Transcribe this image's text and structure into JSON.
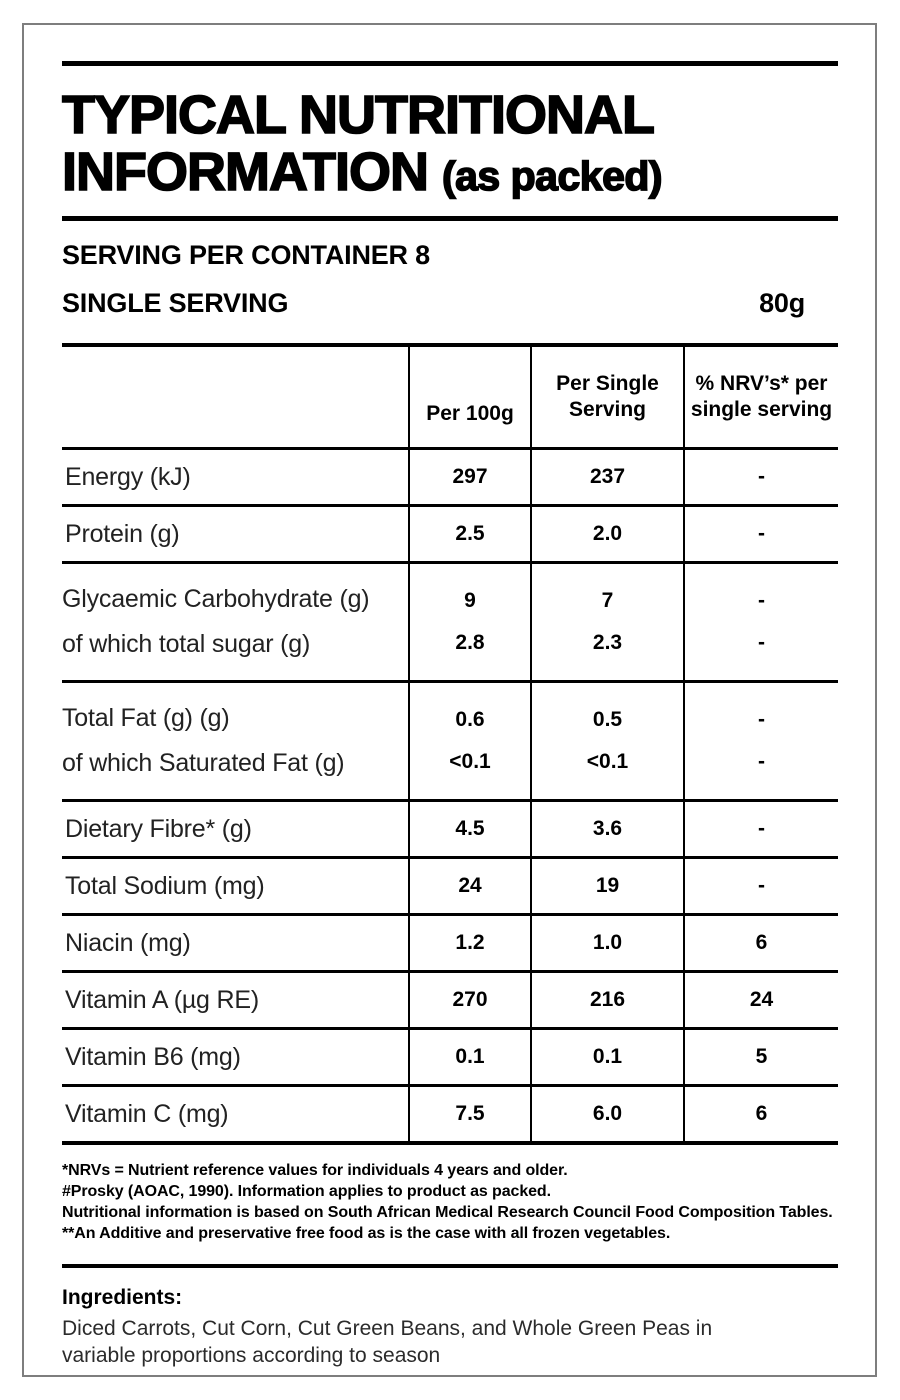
{
  "title": {
    "line1": "TYPICAL NUTRITIONAL",
    "line2": "INFORMATION",
    "suffix": "(as packed)"
  },
  "serving": {
    "per_container_label": "SERVING PER CONTAINER 8",
    "single_serving_label": "SINGLE SERVING",
    "single_serving_value": "80g"
  },
  "table": {
    "columns": [
      "",
      "Per 100g",
      "Per Single\nServing",
      "% NRV’s* per\nsingle serving"
    ],
    "rows": [
      {
        "cells": [
          [
            "Energy (kJ)"
          ],
          [
            "297"
          ],
          [
            "237"
          ],
          [
            "-"
          ]
        ]
      },
      {
        "cells": [
          [
            "Protein (g)"
          ],
          [
            "2.5"
          ],
          [
            "2.0"
          ],
          [
            "-"
          ]
        ]
      },
      {
        "cells": [
          [
            "Glycaemic Carbohydrate (g)",
            "of which total sugar (g)"
          ],
          [
            "9",
            "2.8"
          ],
          [
            "7",
            "2.3"
          ],
          [
            "-",
            "-"
          ]
        ]
      },
      {
        "cells": [
          [
            "Total Fat (g) (g)",
            "of which Saturated Fat (g)"
          ],
          [
            "0.6",
            "<0.1"
          ],
          [
            "0.5",
            "<0.1"
          ],
          [
            "-",
            "-"
          ]
        ]
      },
      {
        "cells": [
          [
            "Dietary Fibre* (g)"
          ],
          [
            "4.5"
          ],
          [
            "3.6"
          ],
          [
            "-"
          ]
        ]
      },
      {
        "cells": [
          [
            "Total Sodium (mg)"
          ],
          [
            "24"
          ],
          [
            "19"
          ],
          [
            "-"
          ]
        ]
      },
      {
        "cells": [
          [
            "Niacin (mg)"
          ],
          [
            "1.2"
          ],
          [
            "1.0"
          ],
          [
            "6"
          ]
        ]
      },
      {
        "cells": [
          [
            "Vitamin A (µg RE)"
          ],
          [
            "270"
          ],
          [
            "216"
          ],
          [
            "24"
          ]
        ]
      },
      {
        "cells": [
          [
            "Vitamin B6 (mg)"
          ],
          [
            "0.1"
          ],
          [
            "0.1"
          ],
          [
            "5"
          ]
        ]
      },
      {
        "cells": [
          [
            "Vitamin C (mg)"
          ],
          [
            "7.5"
          ],
          [
            "6.0"
          ],
          [
            "6"
          ]
        ]
      }
    ]
  },
  "footnotes": [
    "*NRVs = Nutrient reference values for individuals 4 years and older.",
    "#Prosky (AOAC, 1990). Information applies to product as packed.",
    "Nutritional information is based on South African Medical Research Council Food Composition Tables.",
    "**An Additive and preservative free food as is the case with all frozen vegetables."
  ],
  "ingredients": {
    "heading": "Ingredients:",
    "text": "Diced Carrots, Cut Corn, Cut Green Beans, and Whole Green Peas in variable proportions according to season"
  },
  "colors": {
    "text": "#000000",
    "frame_gray": "#7e7e7e"
  }
}
